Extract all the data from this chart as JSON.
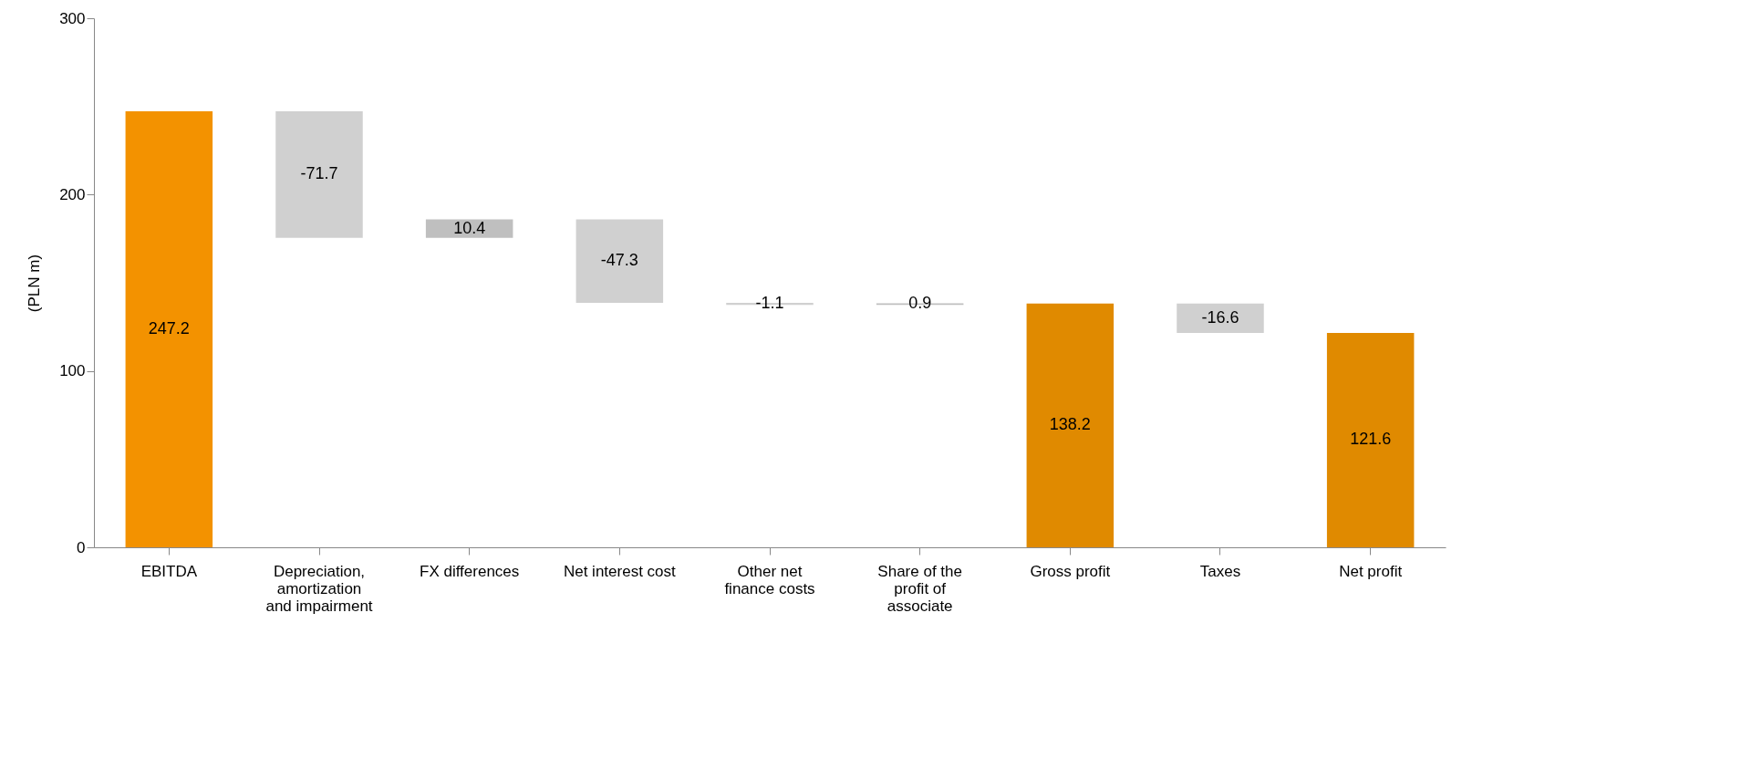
{
  "chart_data": {
    "type": "bar",
    "ylabel": "(PLN m)",
    "categories": [
      "EBITDA",
      "Depreciation, amortization and impairment",
      "FX differences",
      "Net interest cost",
      "Other net finance costs",
      "Share of the profit of associate",
      "Gross profit",
      "Taxes",
      "Net profit"
    ],
    "values": [
      247.2,
      -71.7,
      10.4,
      -47.3,
      -1.1,
      0.9,
      138.2,
      -16.6,
      121.6
    ],
    "base": [
      0,
      247.2,
      175.5,
      185.9,
      138.6,
      137.5,
      0,
      138.2,
      0
    ],
    "colors": [
      "#f39200",
      "#d0d0d0",
      "#bfbfbf",
      "#d0d0d0",
      "#d0d0d0",
      "#bfbfbf",
      "#e08a00",
      "#d0d0d0",
      "#e08a00"
    ],
    "ylim": [
      0,
      300
    ],
    "yticks": [
      0,
      100,
      200,
      300
    ],
    "data_labels": true,
    "grid": false
  }
}
